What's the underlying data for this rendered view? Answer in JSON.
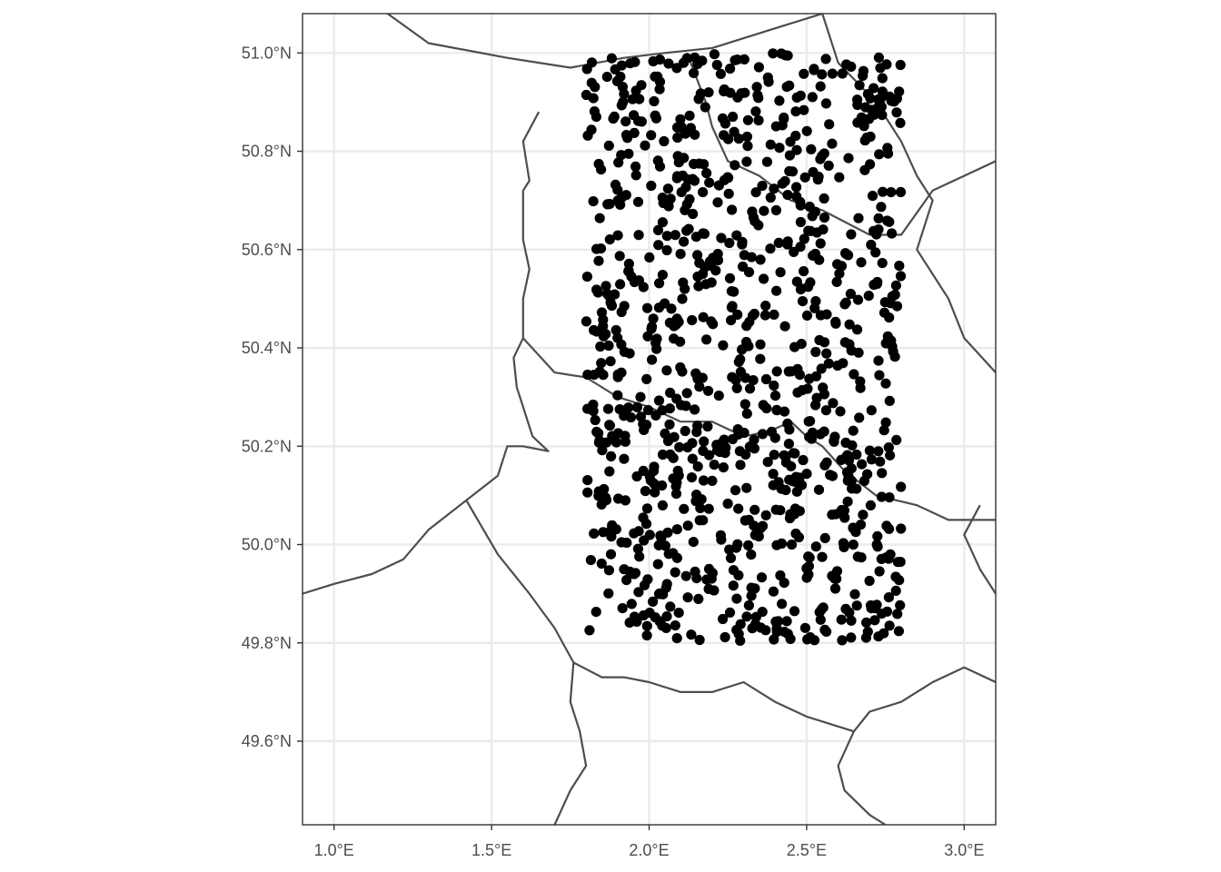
{
  "chart_data": {
    "type": "scatter",
    "title": "",
    "xlabel": "",
    "ylabel": "",
    "xlim": [
      0.9,
      3.1
    ],
    "ylim": [
      49.43,
      51.08
    ],
    "x_ticks": [
      {
        "value": 1.0,
        "label": "1.0°E"
      },
      {
        "value": 1.5,
        "label": "1.5°E"
      },
      {
        "value": 2.0,
        "label": "2.0°E"
      },
      {
        "value": 2.5,
        "label": "2.5°E"
      },
      {
        "value": 3.0,
        "label": "3.0°E"
      }
    ],
    "y_ticks": [
      {
        "value": 49.6,
        "label": "49.6°N"
      },
      {
        "value": 49.8,
        "label": "49.8°N"
      },
      {
        "value": 50.0,
        "label": "50.0°N"
      },
      {
        "value": 50.2,
        "label": "50.2°N"
      },
      {
        "value": 50.4,
        "label": "50.4°N"
      },
      {
        "value": 50.6,
        "label": "50.6°N"
      },
      {
        "value": 50.8,
        "label": "50.8°N"
      },
      {
        "value": 51.0,
        "label": "51.0°N"
      }
    ],
    "grid": true,
    "point_color": "#000000",
    "boundary_color": "#4d4d4d",
    "points_sampling": {
      "count": 1000,
      "lon_range": [
        1.8,
        2.8
      ],
      "lat_range": [
        49.8,
        51.0
      ],
      "distribution": "uniform random"
    },
    "boundaries": [
      [
        [
          1.17,
          51.08
        ],
        [
          1.3,
          51.02
        ],
        [
          1.55,
          50.99
        ],
        [
          1.75,
          50.97
        ],
        [
          1.92,
          50.99
        ],
        [
          2.05,
          51.0
        ],
        [
          2.2,
          51.01
        ],
        [
          2.4,
          51.05
        ],
        [
          2.55,
          51.08
        ]
      ],
      [
        [
          1.65,
          50.88
        ],
        [
          1.6,
          50.82
        ],
        [
          1.62,
          50.74
        ],
        [
          1.6,
          50.72
        ],
        [
          1.6,
          50.62
        ],
        [
          1.62,
          50.56
        ],
        [
          1.6,
          50.5
        ],
        [
          1.6,
          50.42
        ],
        [
          1.57,
          50.38
        ],
        [
          1.58,
          50.32
        ],
        [
          1.6,
          50.28
        ],
        [
          1.63,
          50.22
        ],
        [
          1.68,
          50.19
        ],
        [
          1.6,
          50.2
        ],
        [
          1.55,
          50.2
        ],
        [
          1.52,
          50.14
        ],
        [
          1.42,
          50.09
        ],
        [
          1.3,
          50.03
        ],
        [
          1.22,
          49.97
        ],
        [
          1.12,
          49.94
        ],
        [
          1.0,
          49.92
        ],
        [
          0.9,
          49.9
        ]
      ],
      [
        [
          1.42,
          50.09
        ],
        [
          1.52,
          49.98
        ],
        [
          1.62,
          49.9
        ],
        [
          1.7,
          49.83
        ],
        [
          1.76,
          49.76
        ],
        [
          1.75,
          49.68
        ],
        [
          1.78,
          49.62
        ],
        [
          1.8,
          49.55
        ],
        [
          1.75,
          49.5
        ],
        [
          1.7,
          49.43
        ]
      ],
      [
        [
          1.6,
          50.42
        ],
        [
          1.7,
          50.35
        ],
        [
          1.8,
          50.34
        ],
        [
          1.9,
          50.3
        ],
        [
          2.0,
          50.28
        ],
        [
          2.1,
          50.25
        ],
        [
          2.2,
          50.25
        ],
        [
          2.3,
          50.22
        ],
        [
          2.38,
          50.23
        ],
        [
          2.45,
          50.25
        ],
        [
          2.5,
          50.22
        ],
        [
          2.55,
          50.2
        ],
        [
          2.62,
          50.15
        ],
        [
          2.72,
          50.1
        ],
        [
          2.85,
          50.08
        ],
        [
          2.95,
          50.05
        ],
        [
          3.1,
          50.05
        ]
      ],
      [
        [
          1.76,
          49.76
        ],
        [
          1.85,
          49.73
        ],
        [
          1.92,
          49.73
        ],
        [
          2.0,
          49.72
        ],
        [
          2.1,
          49.7
        ],
        [
          2.2,
          49.7
        ],
        [
          2.3,
          49.72
        ],
        [
          2.4,
          49.68
        ],
        [
          2.5,
          49.65
        ],
        [
          2.6,
          49.63
        ],
        [
          2.65,
          49.62
        ],
        [
          2.7,
          49.66
        ],
        [
          2.8,
          49.68
        ],
        [
          2.9,
          49.72
        ],
        [
          3.0,
          49.75
        ],
        [
          3.1,
          49.72
        ]
      ],
      [
        [
          2.12,
          51.0
        ],
        [
          2.18,
          50.9
        ],
        [
          2.2,
          50.85
        ],
        [
          2.25,
          50.78
        ],
        [
          2.35,
          50.75
        ],
        [
          2.45,
          50.7
        ],
        [
          2.55,
          50.68
        ],
        [
          2.7,
          50.63
        ],
        [
          2.8,
          50.63
        ],
        [
          2.9,
          50.72
        ],
        [
          3.0,
          50.75
        ],
        [
          3.1,
          50.78
        ]
      ],
      [
        [
          2.55,
          51.08
        ],
        [
          2.6,
          50.98
        ],
        [
          2.72,
          50.9
        ],
        [
          2.8,
          50.82
        ],
        [
          2.85,
          50.75
        ],
        [
          2.9,
          50.7
        ],
        [
          2.85,
          50.6
        ],
        [
          2.95,
          50.5
        ],
        [
          3.0,
          50.42
        ],
        [
          3.1,
          50.35
        ]
      ],
      [
        [
          2.65,
          49.62
        ],
        [
          2.6,
          49.55
        ],
        [
          2.62,
          49.5
        ],
        [
          2.7,
          49.45
        ],
        [
          2.75,
          49.43
        ]
      ],
      [
        [
          3.05,
          50.08
        ],
        [
          3.0,
          50.02
        ],
        [
          3.05,
          49.95
        ],
        [
          3.1,
          49.9
        ]
      ]
    ]
  }
}
